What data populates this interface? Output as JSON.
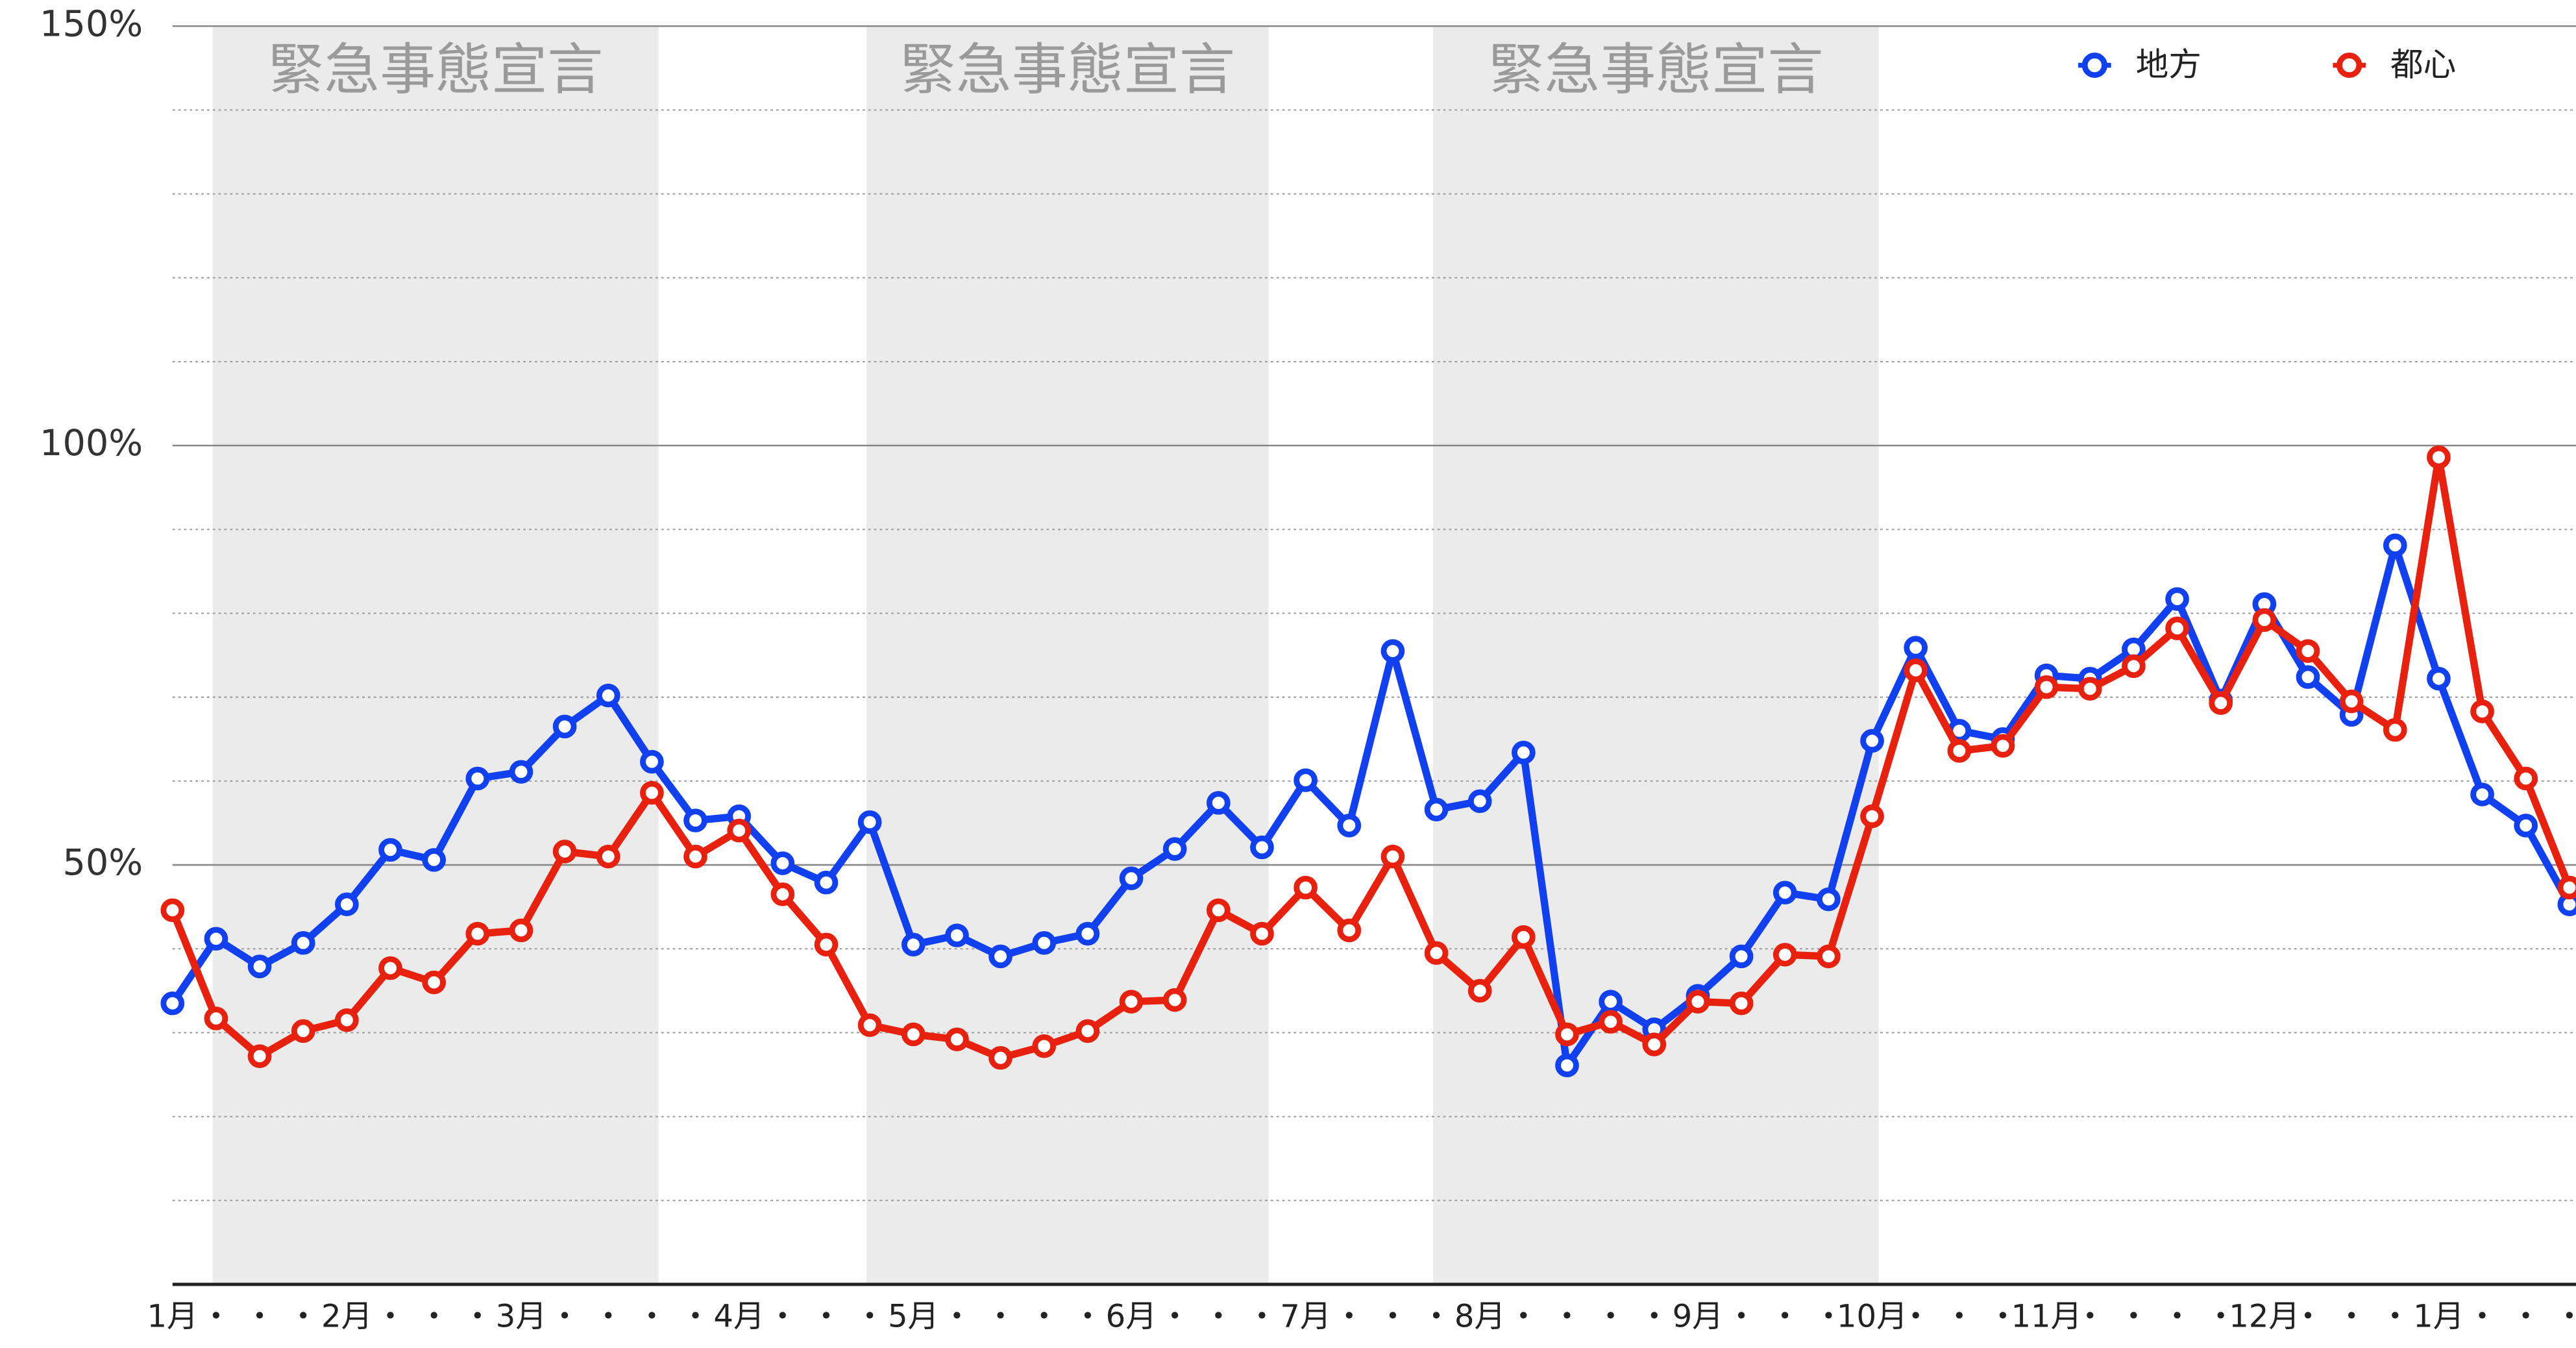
{
  "chart_data": {
    "type": "line",
    "categories": [
      "1月",
      "・",
      "・",
      "・",
      "2月",
      "・",
      "・",
      "・",
      "3月",
      "・",
      "・",
      "・",
      "・",
      "4月",
      "・",
      "・",
      "・",
      "5月",
      "・",
      "・",
      "・",
      "・",
      "6月",
      "・",
      "・",
      "・",
      "7月",
      "・",
      "・",
      "・",
      "8月",
      "・",
      "・",
      "・",
      "・",
      "9月",
      "・",
      "・",
      "・",
      "10月",
      "・",
      "・",
      "・",
      "11月",
      "・",
      "・",
      "・",
      "・",
      "12月",
      "・",
      "・",
      "・",
      "1月",
      "・",
      "・",
      "・"
    ],
    "series": [
      {
        "name": "地方",
        "color": "#1040f0",
        "values": [
          33.5,
          41.2,
          37.9,
          40.7,
          45.3,
          51.8,
          50.6,
          60.3,
          61.1,
          66.5,
          70.2,
          62.3,
          55.3,
          55.8,
          50.2,
          47.9,
          55.1,
          40.5,
          41.6,
          39.1,
          40.7,
          41.8,
          48.4,
          51.9,
          57.4,
          52.1,
          60.1,
          54.7,
          75.5,
          56.6,
          57.6,
          63.4,
          26.1,
          33.7,
          30.4,
          34.4,
          39.1,
          46.7,
          45.9,
          64.8,
          75.9,
          66.0,
          65.0,
          72.6,
          72.2,
          75.7,
          81.7,
          69.6,
          81.1,
          72.4,
          67.9,
          88.1,
          72.2,
          58.4,
          54.7,
          45.3
        ]
      },
      {
        "name": "都心",
        "color": "#e8200e",
        "values": [
          44.6,
          31.7,
          27.2,
          30.2,
          31.5,
          37.7,
          36.0,
          41.8,
          42.2,
          51.6,
          51.0,
          58.6,
          51.0,
          54.1,
          46.5,
          40.5,
          30.9,
          29.8,
          29.2,
          27.0,
          28.4,
          30.2,
          33.7,
          33.9,
          44.6,
          41.8,
          47.3,
          42.2,
          51.0,
          39.5,
          35.0,
          41.4,
          29.8,
          31.3,
          28.6,
          33.7,
          33.5,
          39.3,
          39.1,
          55.8,
          73.2,
          63.6,
          64.2,
          71.2,
          71.0,
          73.7,
          78.2,
          69.3,
          79.2,
          75.5,
          69.5,
          66.1,
          98.6,
          68.3,
          60.3,
          47.3
        ]
      }
    ],
    "ylim": [
      0,
      150
    ],
    "yticks": [
      {
        "value": 50,
        "label": "50%"
      },
      {
        "value": 100,
        "label": "100%"
      },
      {
        "value": 150,
        "label": "150%"
      }
    ],
    "minor_grid": [
      10,
      20,
      30,
      40,
      60,
      70,
      80,
      90,
      110,
      120,
      130,
      140
    ],
    "grid": true,
    "legend": "top-right",
    "shaded_periods": [
      {
        "label": "緊急事態宣言",
        "start": 1,
        "end": 11
      },
      {
        "label": "緊急事態宣言",
        "start": 16,
        "end": 25
      },
      {
        "label": "緊急事態宣言",
        "start": 29,
        "end": 39
      }
    ]
  }
}
